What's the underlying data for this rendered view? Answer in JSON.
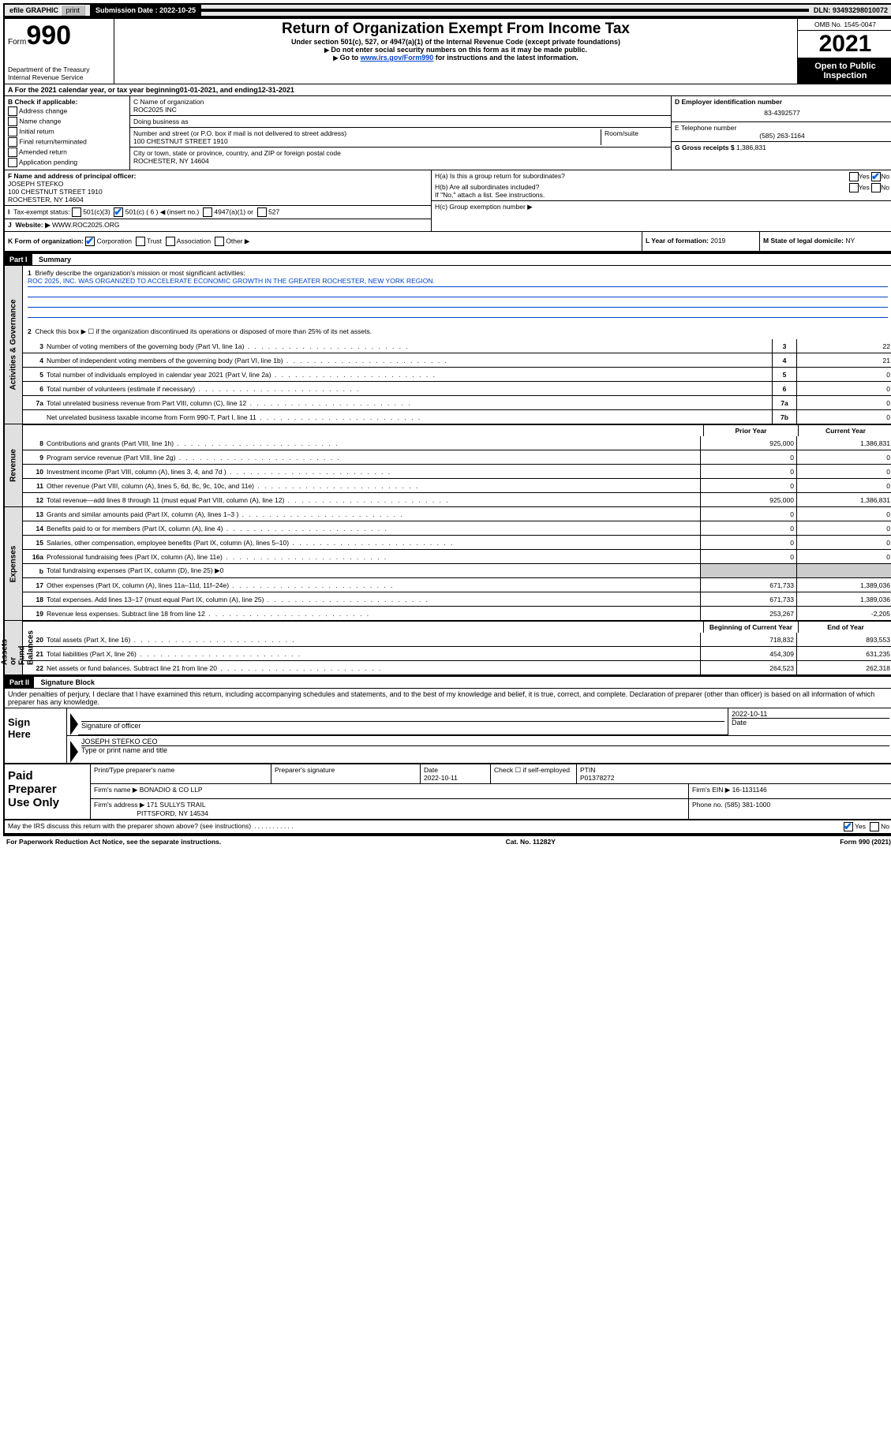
{
  "topbar": {
    "efile": "efile GRAPHIC",
    "print": "print",
    "sub_label": "Submission Date :",
    "sub_date": "2022-10-25",
    "dln": "DLN: 93493298010072"
  },
  "header": {
    "form_word": "Form",
    "form_num": "990",
    "dept": "Department of the Treasury\nInternal Revenue Service",
    "title": "Return of Organization Exempt From Income Tax",
    "sub": "Under section 501(c), 527, or 4947(a)(1) of the Internal Revenue Code (except private foundations)",
    "instr1": "Do not enter social security numbers on this form as it may be made public.",
    "instr2_pre": "Go to ",
    "instr2_link": "www.irs.gov/Form990",
    "instr2_post": " for instructions and the latest information.",
    "omb": "OMB No. 1545-0047",
    "year": "2021",
    "inspect": "Open to Public\nInspection"
  },
  "row_a": {
    "label": "A For the 2021 calendar year, or tax year beginning ",
    "begin": "01-01-2021",
    "mid": " , and ending ",
    "end": "12-31-2021"
  },
  "section_b": {
    "heading": "B Check if applicable:",
    "opts": [
      "Address change",
      "Name change",
      "Initial return",
      "Final return/terminated",
      "Amended return",
      "Application pending"
    ],
    "checked": [
      false,
      false,
      false,
      false,
      false,
      false
    ]
  },
  "section_c": {
    "name_label": "C Name of organization",
    "name": "ROC2025 INC",
    "dba_label": "Doing business as",
    "dba": "",
    "addr_label": "Number and street (or P.O. box if mail is not delivered to street address)",
    "room_label": "Room/suite",
    "addr": "100 CHESTNUT STREET 1910",
    "city_label": "City or town, state or province, country, and ZIP or foreign postal code",
    "city": "ROCHESTER, NY  14604"
  },
  "section_d": {
    "ein_label": "D Employer identification number",
    "ein": "83-4392577",
    "phone_label": "E Telephone number",
    "phone": "(585) 263-1164",
    "gross_label": "G Gross receipts $",
    "gross": "1,386,831"
  },
  "section_f": {
    "label": "F Name and address of principal officer:",
    "name": "JOSEPH STEFKO",
    "addr1": "100 CHESTNUT STREET 1910",
    "addr2": "ROCHESTER, NY  14604"
  },
  "section_h": {
    "ha": "H(a)  Is this a group return for subordinates?",
    "ha_no": true,
    "hb": "H(b)  Are all subordinates included?",
    "hb_note": "If \"No,\" attach a list. See instructions.",
    "hc": "H(c)  Group exemption number ▶"
  },
  "section_i": {
    "label": "Tax-exempt status:",
    "c3": "501(c)(3)",
    "c_other": "501(c) ( 6 ) ◀ (insert no.)",
    "c_checked": true,
    "a1": "4947(a)(1) or",
    "s527": "527"
  },
  "section_j": {
    "label": "Website: ▶",
    "val": "WWW.ROC2025.ORG"
  },
  "section_k": {
    "label": "K Form of organization:",
    "opts": [
      "Corporation",
      "Trust",
      "Association",
      "Other ▶"
    ],
    "checked": [
      true,
      false,
      false,
      false
    ]
  },
  "section_l": {
    "label": "L Year of formation:",
    "val": "2019"
  },
  "section_m": {
    "label": "M State of legal domicile:",
    "val": "NY"
  },
  "part1": {
    "header": "Part I",
    "title": "Summary",
    "line1_label": "Briefly describe the organization's mission or most significant activities:",
    "mission": "ROC 2025, INC. WAS ORGANIZED TO ACCELERATE ECONOMIC GROWTH IN THE GREATER ROCHESTER, NEW YORK REGION.",
    "line2": "Check this box ▶ ☐  if the organization discontinued its operations or disposed of more than 25% of its net assets.",
    "tabs": {
      "gov": "Activities & Governance",
      "rev": "Revenue",
      "exp": "Expenses",
      "net": "Net Assets or\nFund Balances"
    },
    "gov_lines": [
      {
        "n": "3",
        "d": "Number of voting members of the governing body (Part VI, line 1a)",
        "box": "3",
        "v": "22"
      },
      {
        "n": "4",
        "d": "Number of independent voting members of the governing body (Part VI, line 1b)",
        "box": "4",
        "v": "21"
      },
      {
        "n": "5",
        "d": "Total number of individuals employed in calendar year 2021 (Part V, line 2a)",
        "box": "5",
        "v": "0"
      },
      {
        "n": "6",
        "d": "Total number of volunteers (estimate if necessary)",
        "box": "6",
        "v": "0"
      },
      {
        "n": "7a",
        "d": "Total unrelated business revenue from Part VIII, column (C), line 12",
        "box": "7a",
        "v": "0"
      },
      {
        "n": "",
        "d": "Net unrelated business taxable income from Form 990-T, Part I, line 11",
        "box": "7b",
        "v": "0"
      }
    ],
    "col_prior": "Prior Year",
    "col_current": "Current Year",
    "col_begin": "Beginning of Current Year",
    "col_end": "End of Year",
    "rev_lines": [
      {
        "n": "8",
        "d": "Contributions and grants (Part VIII, line 1h)",
        "p": "925,000",
        "c": "1,386,831"
      },
      {
        "n": "9",
        "d": "Program service revenue (Part VIII, line 2g)",
        "p": "0",
        "c": "0"
      },
      {
        "n": "10",
        "d": "Investment income (Part VIII, column (A), lines 3, 4, and 7d )",
        "p": "0",
        "c": "0"
      },
      {
        "n": "11",
        "d": "Other revenue (Part VIII, column (A), lines 5, 6d, 8c, 9c, 10c, and 11e)",
        "p": "0",
        "c": "0"
      },
      {
        "n": "12",
        "d": "Total revenue—add lines 8 through 11 (must equal Part VIII, column (A), line 12)",
        "p": "925,000",
        "c": "1,386,831"
      }
    ],
    "exp_lines": [
      {
        "n": "13",
        "d": "Grants and similar amounts paid (Part IX, column (A), lines 1–3 )",
        "p": "0",
        "c": "0"
      },
      {
        "n": "14",
        "d": "Benefits paid to or for members (Part IX, column (A), line 4)",
        "p": "0",
        "c": "0"
      },
      {
        "n": "15",
        "d": "Salaries, other compensation, employee benefits (Part IX, column (A), lines 5–10)",
        "p": "0",
        "c": "0"
      },
      {
        "n": "16a",
        "d": "Professional fundraising fees (Part IX, column (A), line 11e)",
        "p": "0",
        "c": "0"
      },
      {
        "n": "b",
        "d": "Total fundraising expenses (Part IX, column (D), line 25) ▶0",
        "p": "",
        "c": "",
        "shade": true,
        "nodots": true
      },
      {
        "n": "17",
        "d": "Other expenses (Part IX, column (A), lines 11a–11d, 11f–24e)",
        "p": "671,733",
        "c": "1,389,036"
      },
      {
        "n": "18",
        "d": "Total expenses. Add lines 13–17 (must equal Part IX, column (A), line 25)",
        "p": "671,733",
        "c": "1,389,036"
      },
      {
        "n": "19",
        "d": "Revenue less expenses. Subtract line 18 from line 12",
        "p": "253,267",
        "c": "-2,205"
      }
    ],
    "net_lines": [
      {
        "n": "20",
        "d": "Total assets (Part X, line 16)",
        "p": "718,832",
        "c": "893,553"
      },
      {
        "n": "21",
        "d": "Total liabilities (Part X, line 26)",
        "p": "454,309",
        "c": "631,235"
      },
      {
        "n": "22",
        "d": "Net assets or fund balances. Subtract line 21 from line 20",
        "p": "264,523",
        "c": "262,318"
      }
    ]
  },
  "part2": {
    "header": "Part II",
    "title": "Signature Block",
    "penalty": "Under penalties of perjury, I declare that I have examined this return, including accompanying schedules and statements, and to the best of my knowledge and belief, it is true, correct, and complete. Declaration of preparer (other than officer) is based on all information of which preparer has any knowledge.",
    "sign_here": "Sign\nHere",
    "sig_officer": "Signature of officer",
    "sig_date_label": "Date",
    "sig_date": "2022-10-11",
    "sig_name": "JOSEPH STEFKO CEO",
    "sig_name_label": "Type or print name and title",
    "paid_label": "Paid\nPreparer\nUse Only",
    "p_name_label": "Print/Type preparer's name",
    "p_sig_label": "Preparer's signature",
    "p_date_label": "Date",
    "p_date": "2022-10-11",
    "p_self": "Check ☐ if self-employed",
    "ptin_label": "PTIN",
    "ptin": "P01378272",
    "firm_name_label": "Firm's name    ▶",
    "firm_name": "BONADIO & CO LLP",
    "firm_ein_label": "Firm's EIN ▶",
    "firm_ein": "16-1131146",
    "firm_addr_label": "Firm's address ▶",
    "firm_addr1": "171 SULLYS TRAIL",
    "firm_addr2": "PITTSFORD, NY  14534",
    "firm_phone_label": "Phone no.",
    "firm_phone": "(585) 381-1000",
    "discuss": "May the IRS discuss this return with the preparer shown above? (see instructions)",
    "discuss_yes": true
  },
  "footer": {
    "pra": "For Paperwork Reduction Act Notice, see the separate instructions.",
    "cat": "Cat. No. 11282Y",
    "form": "Form 990 (2021)"
  }
}
